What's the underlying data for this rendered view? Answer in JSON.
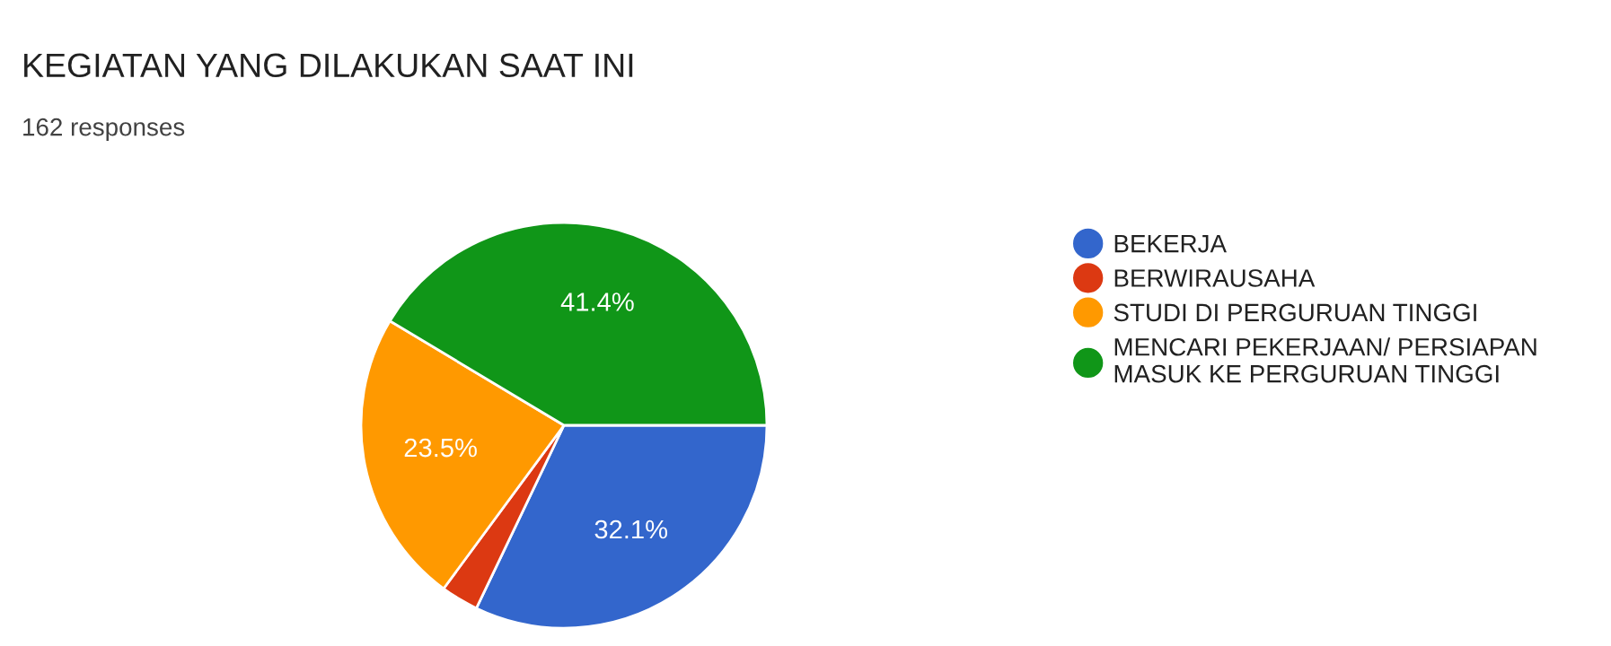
{
  "chart_data": {
    "type": "pie",
    "title": "KEGIATAN YANG DILAKUKAN SAAT INI",
    "subtitle": "162 responses",
    "categories": [
      "BEKERJA",
      "BERWIRAUSAHA",
      "STUDI DI PERGURUAN TINGGI",
      "MENCARI PEKERJAAN/ PERSIAPAN\nMASUK KE PERGURUAN TINGGI"
    ],
    "values": [
      32.1,
      3.0,
      23.5,
      41.4
    ],
    "colors": [
      "#3366cc",
      "#dc3912",
      "#ff9900",
      "#109618"
    ],
    "value_labels": [
      "32.1%",
      null,
      "23.5%",
      "41.4%"
    ],
    "legend": "right"
  }
}
